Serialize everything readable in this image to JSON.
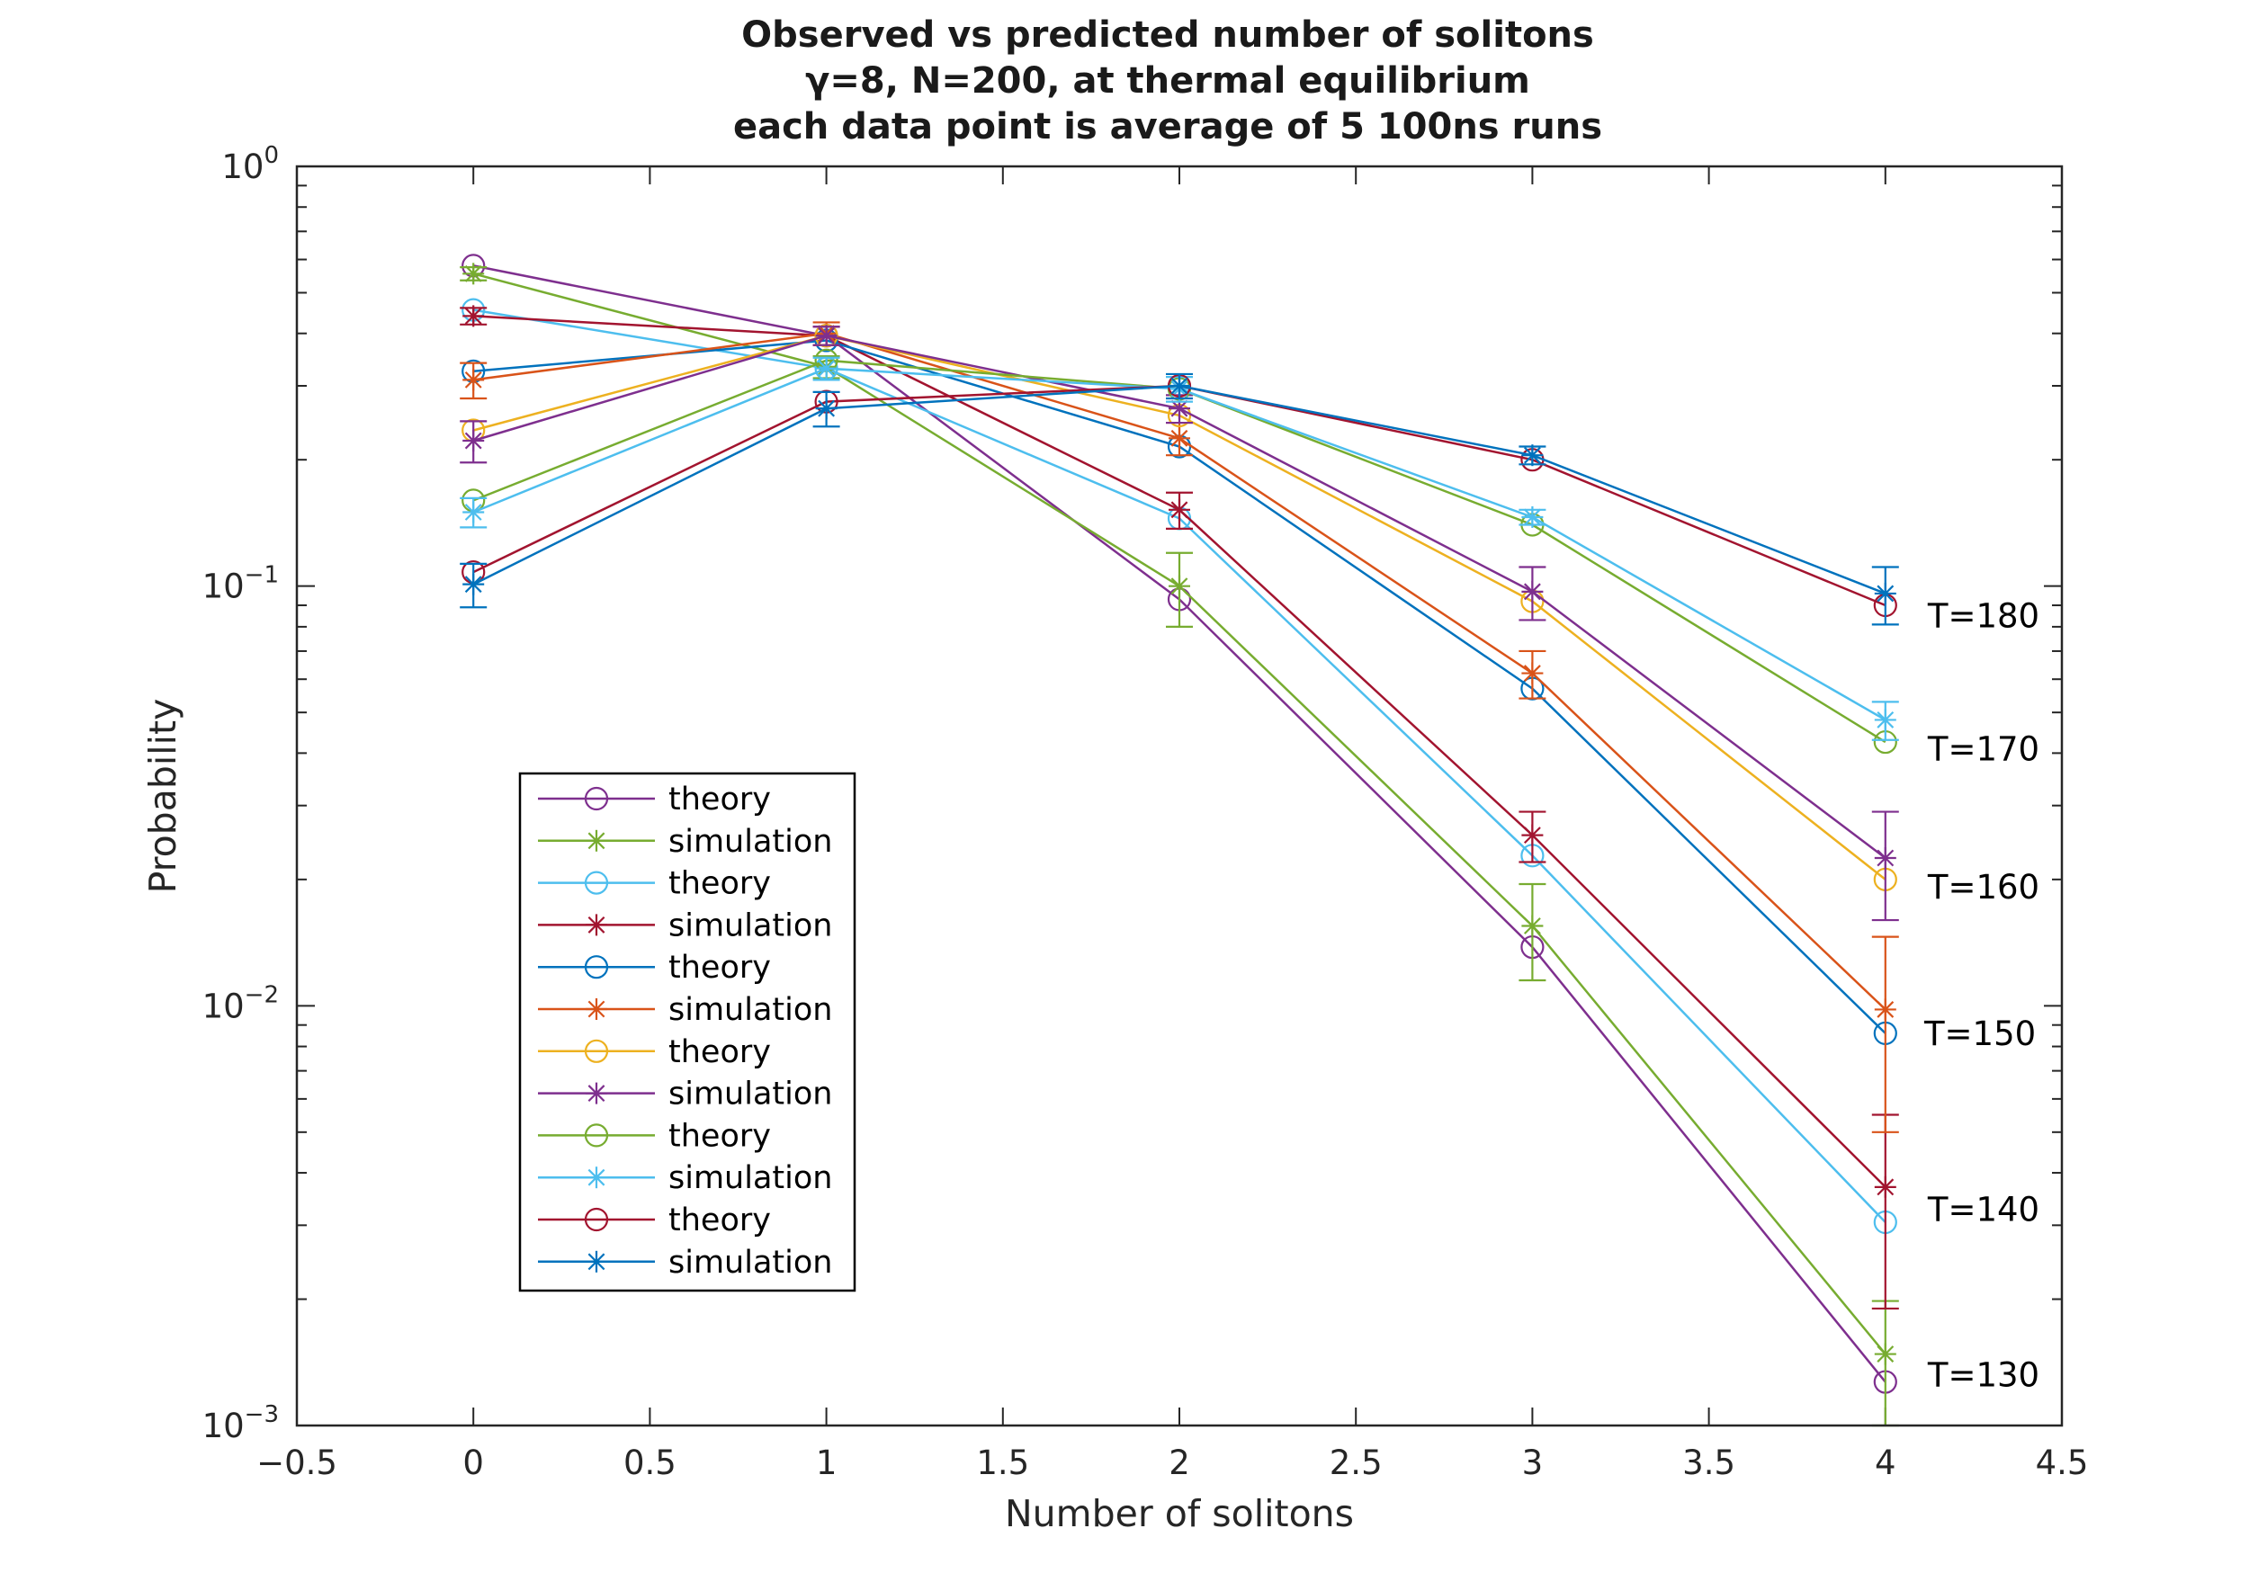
{
  "chart_data": {
    "type": "line",
    "title": [
      "Observed vs predicted number of solitons",
      "γ=8, N=200, at thermal equilibrium",
      "each data point is average of 5 100ns runs"
    ],
    "xlabel": "Number of solitons",
    "ylabel": "Probability",
    "xlim": [
      -0.5,
      4.5
    ],
    "ylim": [
      0.001,
      1
    ],
    "yscale": "log",
    "xticks": [
      -0.5,
      0,
      0.5,
      1,
      1.5,
      2,
      2.5,
      3,
      3.5,
      4,
      4.5
    ],
    "xtick_labels": [
      "−0.5",
      "0",
      "0.5",
      "1",
      "1.5",
      "2",
      "2.5",
      "3",
      "3.5",
      "4",
      "4.5"
    ],
    "yticks": [
      {
        "value": 1,
        "base": "10",
        "exp": "0"
      },
      {
        "value": 0.1,
        "base": "10",
        "exp": "−1"
      },
      {
        "value": 0.01,
        "base": "10",
        "exp": "−2"
      },
      {
        "value": 0.001,
        "base": "10",
        "exp": "−3"
      }
    ],
    "x": [
      0,
      1,
      2,
      3,
      4
    ],
    "series": [
      {
        "name": "theory",
        "marker": "circle",
        "color": "#7E2F8E",
        "errorbars": false,
        "values": [
          0.58,
          0.395,
          0.093,
          0.0138,
          0.00127
        ]
      },
      {
        "name": "simulation",
        "marker": "star",
        "color": "#77AC30",
        "errorbars": true,
        "values": [
          0.555,
          0.333,
          0.1,
          0.0155,
          0.00148
        ],
        "errors": [
          0.02,
          0.02,
          0.02,
          0.004,
          0.0005
        ]
      },
      {
        "name": "theory",
        "marker": "circle",
        "color": "#4DBEEE",
        "errorbars": false,
        "values": [
          0.455,
          0.33,
          0.145,
          0.0228,
          0.00305
        ]
      },
      {
        "name": "simulation",
        "marker": "star",
        "color": "#A2142F",
        "errorbars": true,
        "values": [
          0.44,
          0.395,
          0.152,
          0.0255,
          0.0037
        ],
        "errors": [
          0.02,
          0.02,
          0.015,
          0.0035,
          0.0018
        ]
      },
      {
        "name": "theory",
        "marker": "circle",
        "color": "#0072BD",
        "errorbars": false,
        "values": [
          0.325,
          0.385,
          0.215,
          0.057,
          0.0086
        ]
      },
      {
        "name": "simulation",
        "marker": "star",
        "color": "#D95319",
        "errorbars": true,
        "values": [
          0.31,
          0.4,
          0.225,
          0.062,
          0.0098
        ],
        "errors": [
          0.03,
          0.025,
          0.02,
          0.008,
          0.0048
        ]
      },
      {
        "name": "theory",
        "marker": "circle",
        "color": "#EDB120",
        "errorbars": false,
        "values": [
          0.235,
          0.395,
          0.255,
          0.092,
          0.02
        ]
      },
      {
        "name": "simulation",
        "marker": "star",
        "color": "#7E2F8E",
        "errorbars": true,
        "values": [
          0.222,
          0.395,
          0.265,
          0.097,
          0.0225
        ],
        "errors": [
          0.025,
          0.02,
          0.02,
          0.014,
          0.0065
        ]
      },
      {
        "name": "theory",
        "marker": "circle",
        "color": "#77AC30",
        "errorbars": false,
        "values": [
          0.16,
          0.345,
          0.295,
          0.14,
          0.0425
        ]
      },
      {
        "name": "simulation",
        "marker": "star",
        "color": "#4DBEEE",
        "errorbars": true,
        "values": [
          0.15,
          0.33,
          0.295,
          0.146,
          0.048
        ],
        "errors": [
          0.012,
          0.02,
          0.02,
          0.006,
          0.005
        ]
      },
      {
        "name": "theory",
        "marker": "circle",
        "color": "#A2142F",
        "errorbars": false,
        "values": [
          0.108,
          0.275,
          0.3,
          0.2,
          0.09
        ]
      },
      {
        "name": "simulation",
        "marker": "star",
        "color": "#0072BD",
        "errorbars": true,
        "values": [
          0.101,
          0.265,
          0.3,
          0.205,
          0.096
        ],
        "errors": [
          0.012,
          0.025,
          0.02,
          0.01,
          0.015
        ]
      }
    ],
    "annotations": [
      {
        "text": "T=180",
        "x": 4.12,
        "y": 0.085
      },
      {
        "text": "T=170",
        "x": 4.12,
        "y": 0.041
      },
      {
        "text": "T=160",
        "x": 4.12,
        "y": 0.0192
      },
      {
        "text": "T=150",
        "x": 4.11,
        "y": 0.0086
      },
      {
        "text": "T=140",
        "x": 4.12,
        "y": 0.00328
      },
      {
        "text": "T=130",
        "x": 4.12,
        "y": 0.00132
      }
    ],
    "legend": {
      "location": "inside-lower-left",
      "box": true
    },
    "grid": false
  }
}
